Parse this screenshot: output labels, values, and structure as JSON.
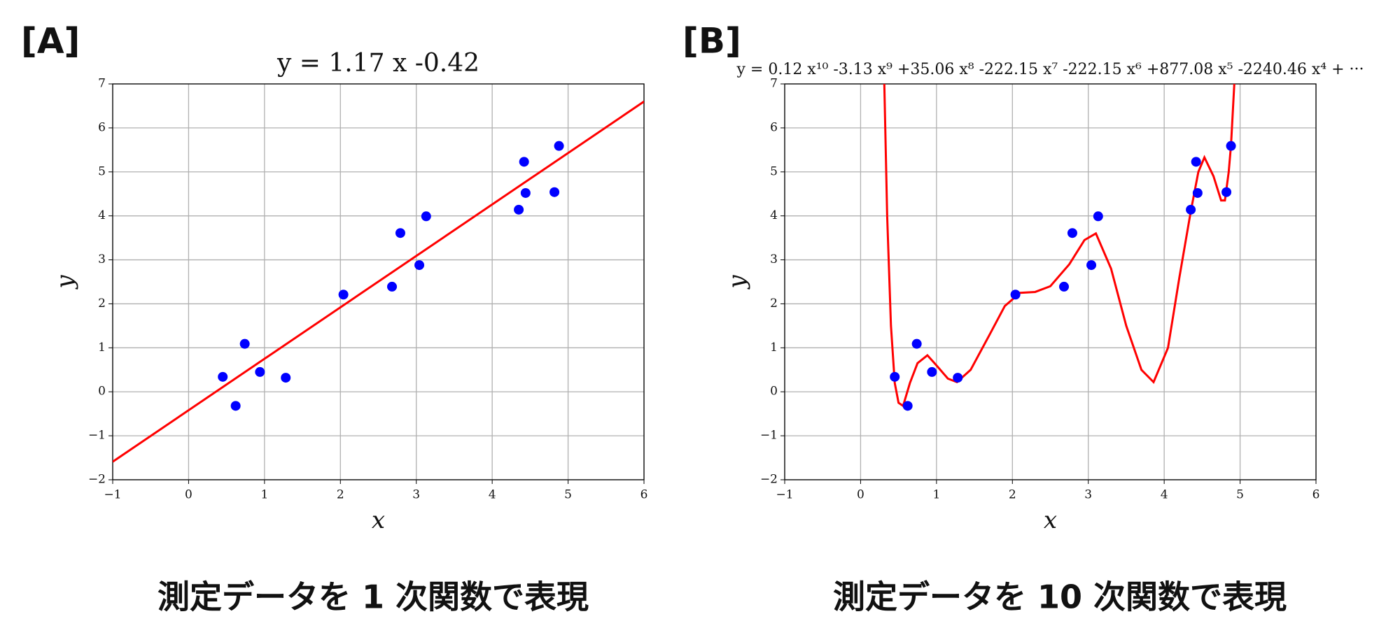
{
  "chart_data": [
    {
      "type": "scatter",
      "panel_label": "[A]",
      "caption": "測定データを 1 次関数で表現",
      "title": "y = 1.17 x -0.42",
      "xlabel": "x",
      "ylabel": "y",
      "xlim": [
        -1,
        6
      ],
      "ylim": [
        -2,
        7
      ],
      "xticks": [
        {
          "value": -1,
          "label": "−1"
        },
        0,
        1,
        2,
        3,
        4,
        5,
        6
      ],
      "yticks": [
        {
          "value": -2,
          "label": "−2"
        },
        {
          "value": -1,
          "label": "−1"
        },
        0,
        1,
        2,
        3,
        4,
        5,
        6,
        7
      ],
      "grid": true,
      "series": [
        {
          "type": "scatter",
          "color": "#0000ff",
          "x": [
            0.45,
            0.62,
            0.74,
            0.94,
            1.28,
            2.04,
            2.68,
            2.79,
            3.04,
            3.13,
            4.35,
            4.42,
            4.44,
            4.82,
            4.88
          ],
          "values": [
            0.34,
            -0.32,
            1.09,
            0.45,
            0.32,
            2.21,
            2.39,
            3.61,
            2.88,
            3.99,
            4.14,
            5.23,
            4.52,
            4.54,
            5.59
          ]
        },
        {
          "type": "line",
          "color": "#ff0000",
          "x": [
            -1,
            6
          ],
          "values": [
            -1.59,
            6.6
          ]
        }
      ]
    },
    {
      "type": "scatter",
      "panel_label": "[B]",
      "caption": "測定データを 10 次関数で表現",
      "title": "y = 0.12 x¹⁰ -3.13 x⁹ +35.06 x⁸ -222.15 x⁷ -222.15 x⁶ +877.08 x⁵ -2240.46 x⁴ + ···",
      "xlabel": "x",
      "ylabel": "y",
      "xlim": [
        -1,
        6
      ],
      "ylim": [
        -2,
        7
      ],
      "xticks": [
        {
          "value": -1,
          "label": "−1"
        },
        0,
        1,
        2,
        3,
        4,
        5,
        6
      ],
      "yticks": [
        {
          "value": -2,
          "label": "−2"
        },
        {
          "value": -1,
          "label": "−1"
        },
        0,
        1,
        2,
        3,
        4,
        5,
        6,
        7
      ],
      "grid": true,
      "series": [
        {
          "type": "scatter",
          "color": "#0000ff",
          "x": [
            0.45,
            0.62,
            0.74,
            0.94,
            1.28,
            2.04,
            2.68,
            2.79,
            3.04,
            3.13,
            4.35,
            4.42,
            4.44,
            4.82,
            4.88
          ],
          "values": [
            0.34,
            -0.32,
            1.09,
            0.45,
            0.32,
            2.21,
            2.39,
            3.61,
            2.88,
            3.99,
            4.14,
            5.23,
            4.52,
            4.54,
            5.59
          ]
        },
        {
          "type": "line",
          "color": "#ff0000",
          "x": [
            0.31,
            0.35,
            0.4,
            0.45,
            0.5,
            0.56,
            0.65,
            0.75,
            0.88,
            1.0,
            1.15,
            1.27,
            1.45,
            1.7,
            1.9,
            2.1,
            2.3,
            2.5,
            2.75,
            2.95,
            3.1,
            3.3,
            3.5,
            3.7,
            3.86,
            4.05,
            4.2,
            4.35,
            4.45,
            4.53,
            4.65,
            4.75,
            4.8,
            4.85,
            4.88,
            4.93
          ],
          "values": [
            7.2,
            4.0,
            1.5,
            0.2,
            -0.25,
            -0.32,
            0.2,
            0.65,
            0.83,
            0.6,
            0.3,
            0.22,
            0.5,
            1.3,
            1.95,
            2.25,
            2.27,
            2.4,
            2.9,
            3.45,
            3.6,
            2.8,
            1.5,
            0.5,
            0.22,
            1.0,
            2.6,
            4.1,
            5.0,
            5.33,
            4.9,
            4.35,
            4.35,
            5.0,
            5.6,
            7.2
          ]
        }
      ]
    }
  ]
}
